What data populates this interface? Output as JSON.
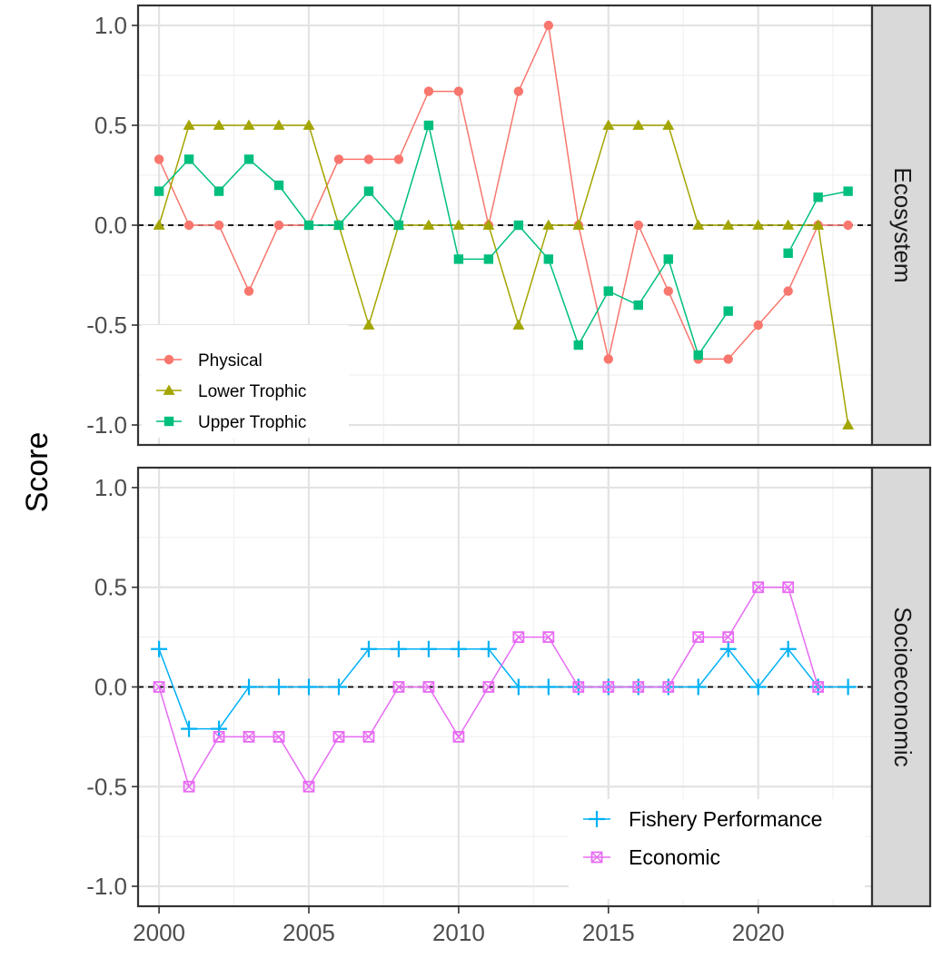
{
  "chart_data": {
    "type": "line",
    "ylabel": "Score",
    "xlabel": "",
    "x_ticks": [
      2000,
      2005,
      2010,
      2015,
      2020
    ],
    "y_ticks": [
      -1.0,
      -0.5,
      0.0,
      0.5,
      1.0
    ],
    "y_tick_labels": [
      "-1.0",
      "-0.5",
      "0.0",
      "0.5",
      "1.0"
    ],
    "x_tick_labels": [
      "2000",
      "2005",
      "2010",
      "2015",
      "2020"
    ],
    "xlim": [
      1999.3,
      2023.8
    ],
    "ylim": [
      -1.1,
      1.1
    ],
    "grid": true,
    "reference_line": 0,
    "panels": [
      {
        "facet_label": "Ecosystem",
        "legend_position": "bottom-left",
        "series": [
          {
            "name": "Physical",
            "color": "#F8766D",
            "marker": "circle",
            "x": [
              2000,
              2001,
              2002,
              2003,
              2004,
              2005,
              2006,
              2007,
              2008,
              2009,
              2010,
              2011,
              2012,
              2013,
              2014,
              2015,
              2016,
              2017,
              2018,
              2019,
              2020,
              2021,
              2022,
              2023
            ],
            "y": [
              0.33,
              0.0,
              0.0,
              -0.33,
              0.0,
              0.0,
              0.33,
              0.33,
              0.33,
              0.67,
              0.67,
              0.0,
              0.67,
              1.0,
              0.0,
              -0.67,
              0.0,
              -0.33,
              -0.67,
              -0.67,
              -0.5,
              -0.33,
              0.0,
              0.0
            ]
          },
          {
            "name": "Lower Trophic",
            "color": "#A3A500",
            "marker": "triangle",
            "x": [
              2000,
              2001,
              2002,
              2003,
              2004,
              2005,
              2006,
              2007,
              2008,
              2009,
              2010,
              2011,
              2012,
              2013,
              2014,
              2015,
              2016,
              2017,
              2018,
              2019,
              2020,
              2021,
              2022,
              2023
            ],
            "y": [
              0.0,
              0.5,
              0.5,
              0.5,
              0.5,
              0.5,
              0.0,
              -0.5,
              0.0,
              0.0,
              0.0,
              0.0,
              -0.5,
              0.0,
              0.0,
              0.5,
              0.5,
              0.5,
              0.0,
              0.0,
              0.0,
              0.0,
              0.0,
              -1.0
            ]
          },
          {
            "name": "Upper Trophic",
            "color": "#00BF7D",
            "marker": "square",
            "segments": [
              {
                "x": [
                  2000,
                  2001,
                  2002,
                  2003,
                  2004,
                  2005,
                  2006,
                  2007,
                  2008,
                  2009,
                  2010,
                  2011,
                  2012,
                  2013,
                  2014,
                  2015,
                  2016,
                  2017,
                  2018,
                  2019
                ],
                "y": [
                  0.17,
                  0.33,
                  0.17,
                  0.33,
                  0.2,
                  0.0,
                  0.0,
                  0.17,
                  0.0,
                  0.5,
                  -0.17,
                  -0.17,
                  0.0,
                  -0.17,
                  -0.6,
                  -0.33,
                  -0.4,
                  -0.17,
                  -0.65,
                  -0.43
                ]
              },
              {
                "x": [
                  2021,
                  2022,
                  2023
                ],
                "y": [
                  -0.14,
                  0.14,
                  0.17
                ]
              }
            ]
          }
        ]
      },
      {
        "facet_label": "Socioeconomic",
        "legend_position": "bottom-right",
        "series": [
          {
            "name": "Fishery Performance",
            "color": "#00B0F6",
            "marker": "plus",
            "x": [
              2000,
              2001,
              2002,
              2003,
              2004,
              2005,
              2006,
              2007,
              2008,
              2009,
              2010,
              2011,
              2012,
              2013,
              2014,
              2015,
              2016,
              2017,
              2018,
              2019,
              2020,
              2021,
              2022,
              2023
            ],
            "y": [
              0.19,
              -0.21,
              -0.21,
              0.0,
              0.0,
              0.0,
              0.0,
              0.19,
              0.19,
              0.19,
              0.19,
              0.19,
              0.0,
              0.0,
              0.0,
              0.0,
              0.0,
              0.0,
              0.0,
              0.19,
              0.0,
              0.19,
              0.0,
              0.0
            ]
          },
          {
            "name": "Economic",
            "color": "#E76BF3",
            "marker": "square-cross",
            "x": [
              2000,
              2001,
              2002,
              2003,
              2004,
              2005,
              2006,
              2007,
              2008,
              2009,
              2010,
              2011,
              2012,
              2013,
              2014,
              2015,
              2016,
              2017,
              2018,
              2019,
              2020,
              2021,
              2022
            ],
            "y": [
              0.0,
              -0.5,
              -0.25,
              -0.25,
              -0.25,
              -0.5,
              -0.25,
              -0.25,
              0.0,
              0.0,
              -0.25,
              0.0,
              0.25,
              0.25,
              0.0,
              0.0,
              0.0,
              0.0,
              0.25,
              0.25,
              0.5,
              0.5,
              0.0
            ]
          }
        ]
      }
    ]
  }
}
